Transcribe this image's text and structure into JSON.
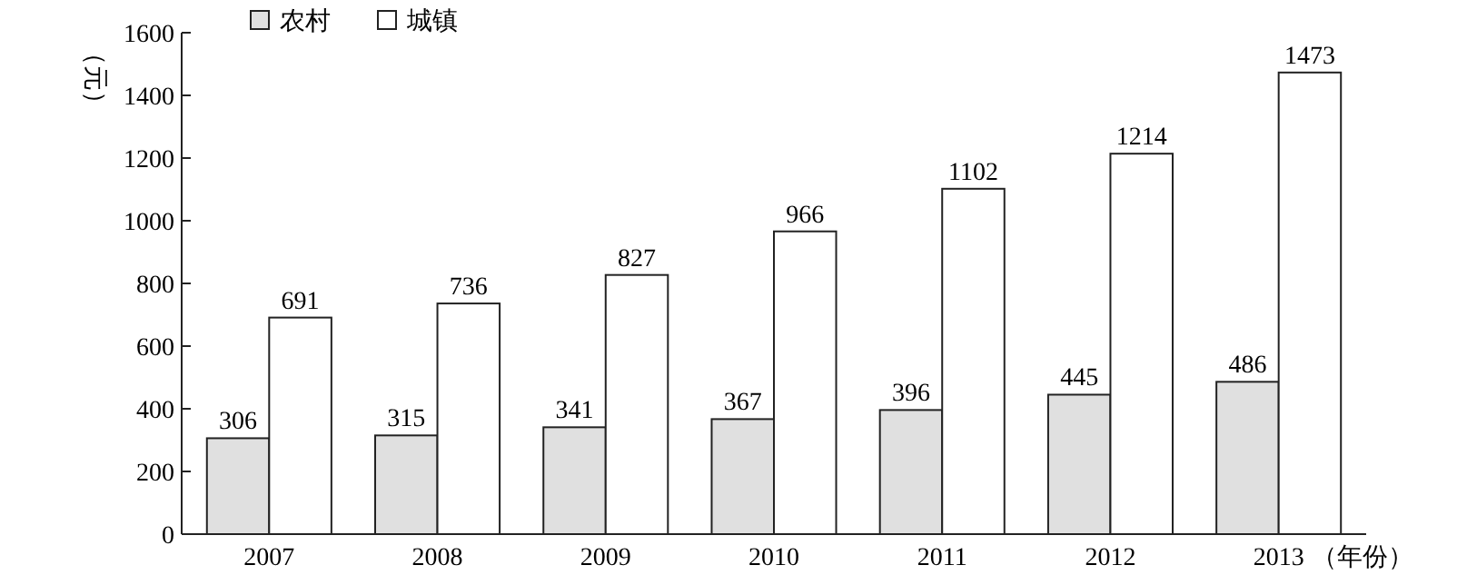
{
  "chart_data": {
    "type": "bar",
    "ylabel": "（元）",
    "xlabel": "（年份）",
    "categories": [
      "2007",
      "2008",
      "2009",
      "2010",
      "2011",
      "2012",
      "2013"
    ],
    "series": [
      {
        "name": "农村",
        "color": "#e0e0e0",
        "values": [
          306,
          315,
          341,
          367,
          396,
          445,
          486
        ]
      },
      {
        "name": "城镇",
        "color": "#ffffff",
        "values": [
          691,
          736,
          827,
          966,
          1102,
          1214,
          1473
        ]
      }
    ],
    "ylim": [
      0,
      1600
    ],
    "yticks": [
      0,
      200,
      400,
      600,
      800,
      1000,
      1200,
      1400,
      1600
    ],
    "data_labels": true,
    "grid": false,
    "legend": "top left"
  }
}
